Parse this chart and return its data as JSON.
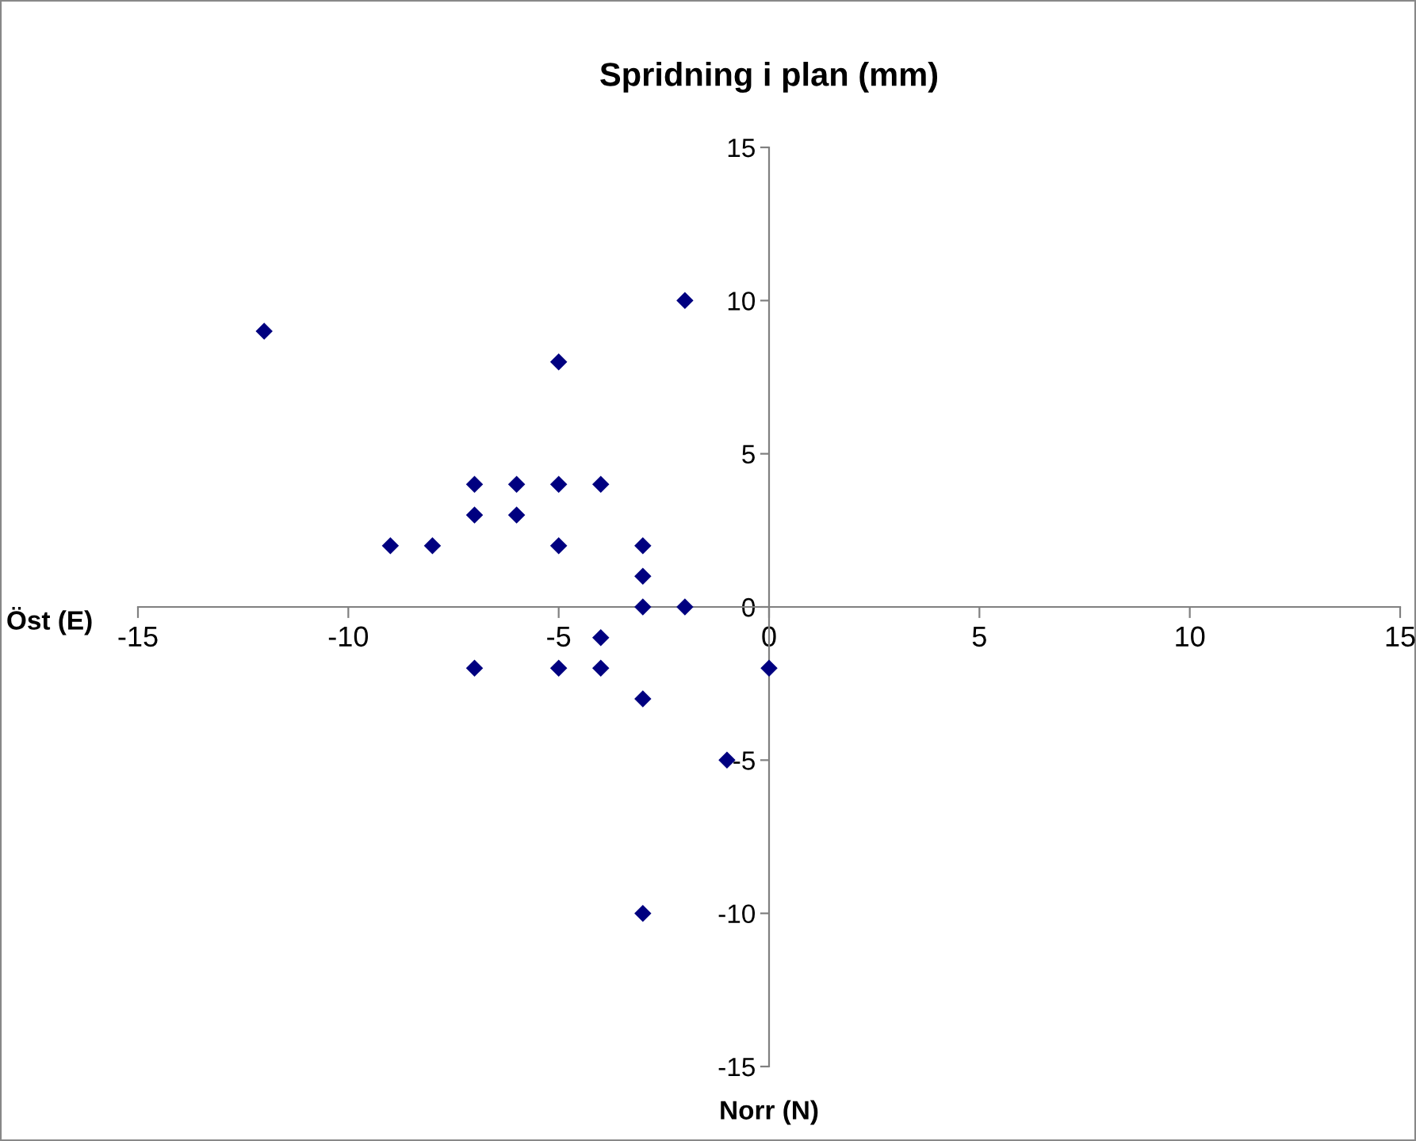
{
  "chart_data": {
    "type": "scatter",
    "title": "Spridning i plan (mm)",
    "xlabel": "Öst (E)",
    "annotations": [
      "Norr (N)"
    ],
    "x": [
      -12,
      -2,
      -5,
      -7,
      -6,
      -5,
      -4,
      -7,
      -6,
      -9,
      -8,
      -5,
      -3,
      -3,
      -3,
      -2,
      -4,
      -7,
      -5,
      -4,
      0,
      -3,
      -1,
      -3
    ],
    "series": [
      {
        "color": "#000080",
        "values": [
          9,
          10,
          8,
          4,
          4,
          4,
          4,
          3,
          3,
          2,
          2,
          2,
          2,
          1,
          0,
          0,
          -1,
          -2,
          -2,
          -2,
          -2,
          -3,
          -5,
          -10
        ]
      }
    ],
    "marker": "diamond",
    "grid": false,
    "legend": false,
    "xlim": [
      -15,
      15
    ],
    "ylim": [
      -15,
      15
    ],
    "xticks": [
      -15,
      -10,
      -5,
      0,
      5,
      10,
      15
    ],
    "yticks": [
      -15,
      -10,
      -5,
      0,
      5,
      10,
      15
    ]
  }
}
